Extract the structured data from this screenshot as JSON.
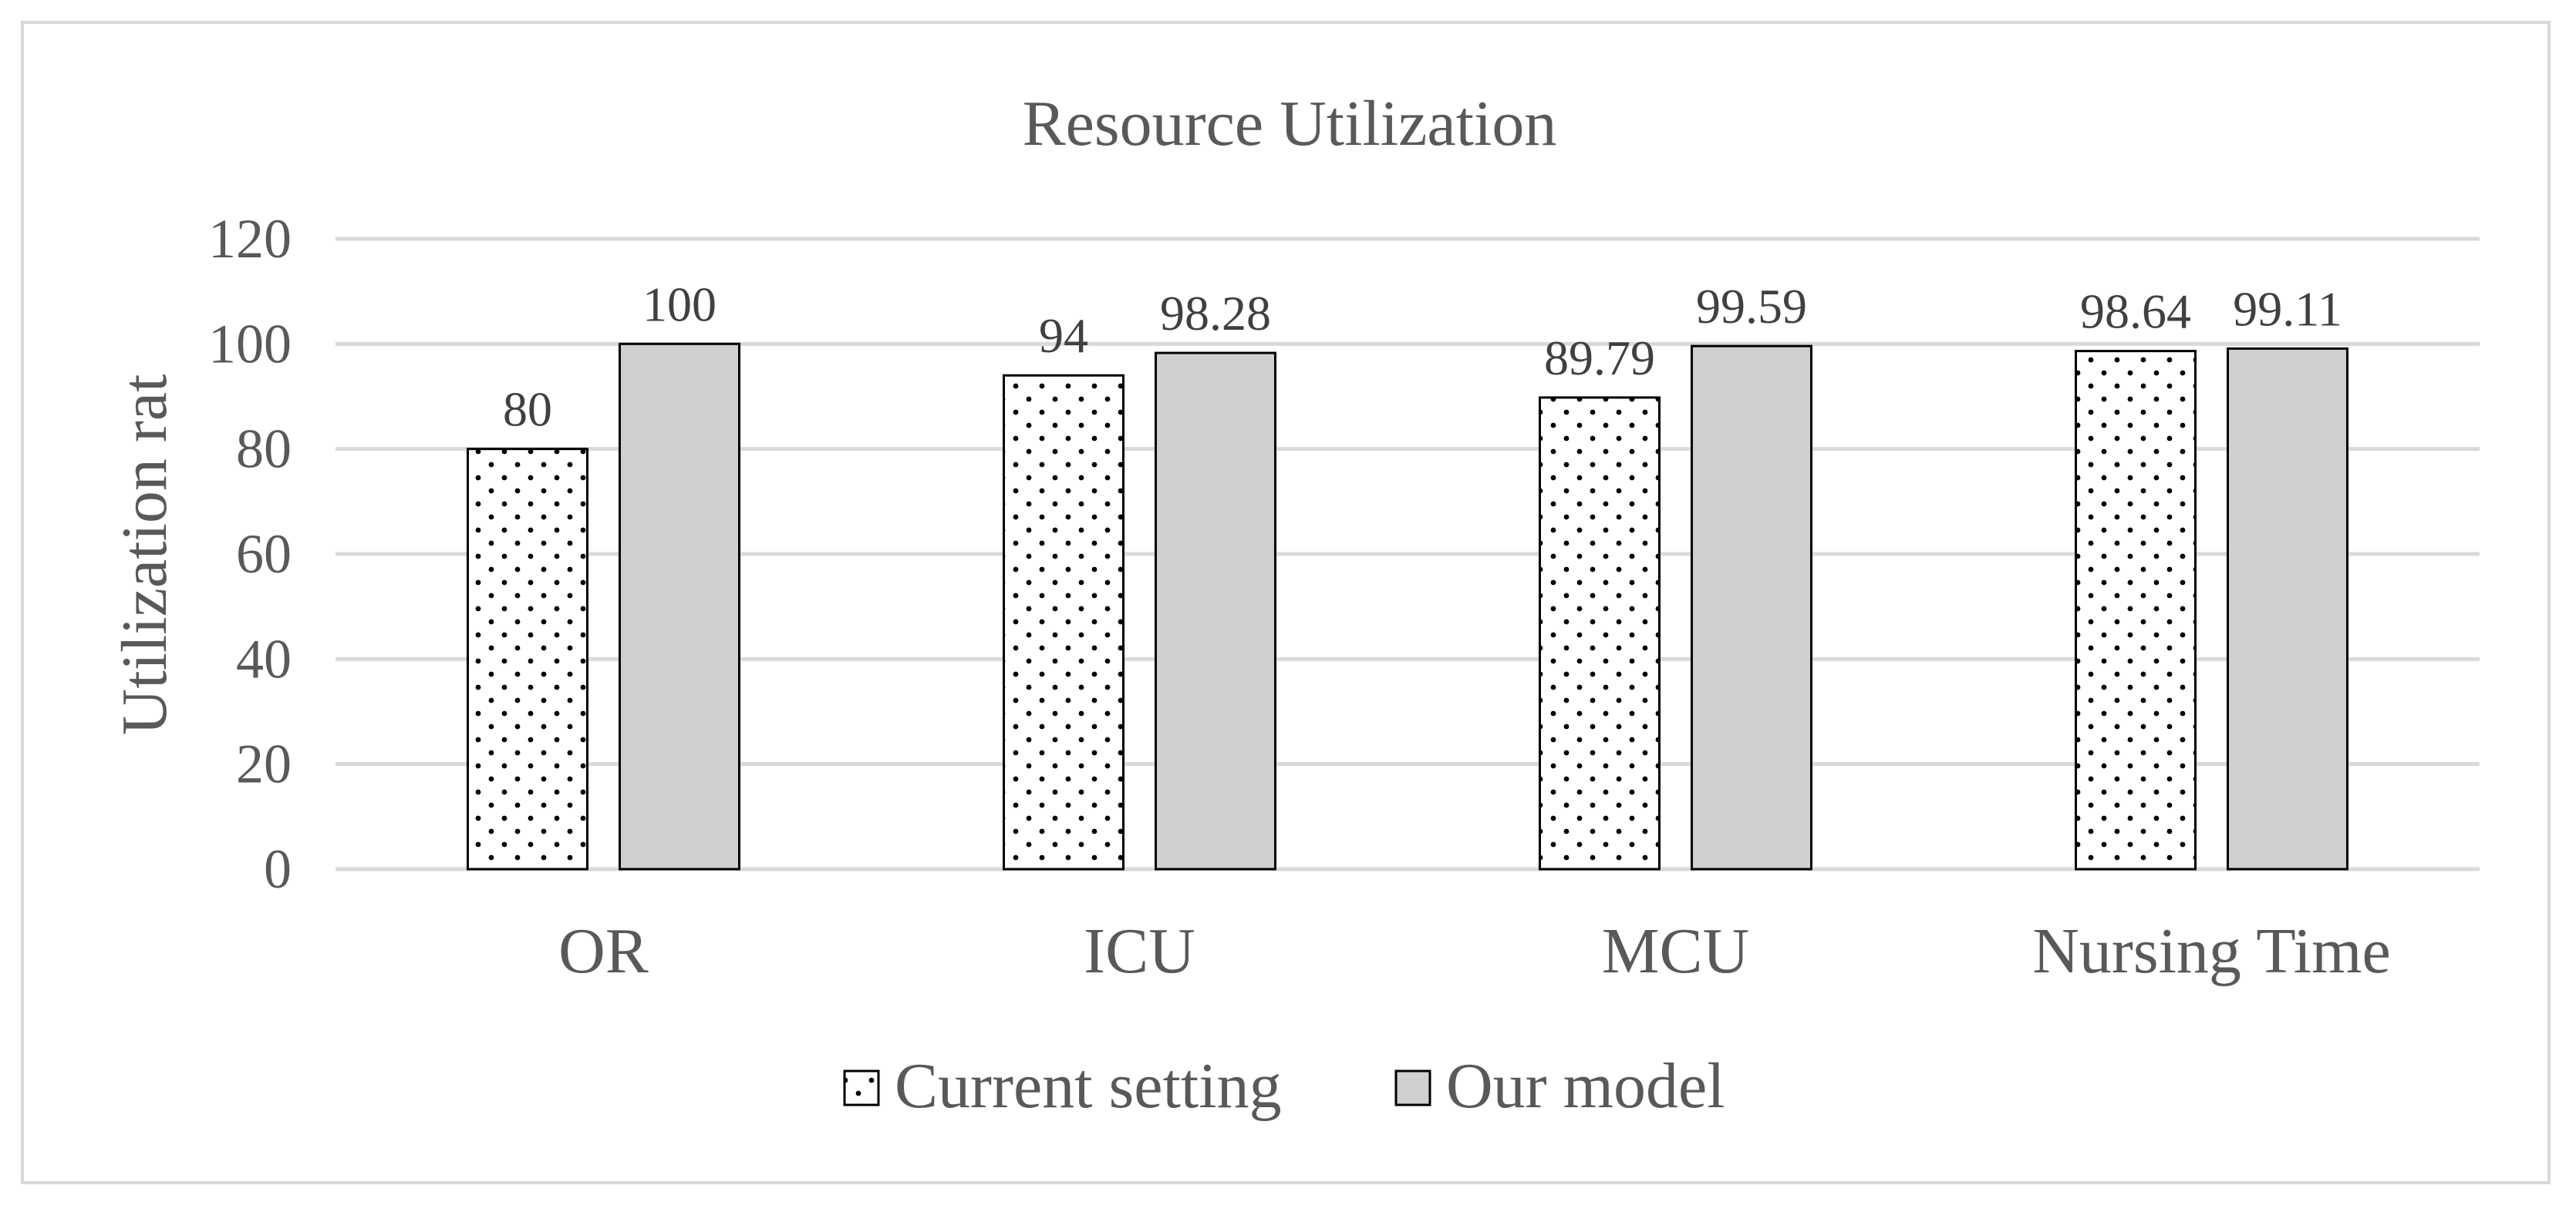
{
  "chart_data": {
    "type": "bar",
    "title": "Resource Utilization",
    "xlabel": "",
    "ylabel": "Utilization rat",
    "ylim": [
      0,
      120
    ],
    "yticks": [
      0,
      20,
      40,
      60,
      80,
      100,
      120
    ],
    "grid": true,
    "legend_position": "bottom",
    "categories": [
      "OR",
      "ICU",
      "MCU",
      "Nursing Time"
    ],
    "series": [
      {
        "name": "Current setting",
        "values": [
          80,
          94,
          89.79,
          98.64
        ],
        "labels": [
          "80",
          "94",
          "89.79",
          "98.64"
        ],
        "fill": "dotted-white"
      },
      {
        "name": "Our model",
        "values": [
          100,
          98.28,
          99.59,
          99.11
        ],
        "labels": [
          "100",
          "98.28",
          "99.59",
          "99.11"
        ],
        "fill": "#d0cece"
      }
    ],
    "colors": {
      "gridline": "#d9d9d9",
      "bar_outline": "#000000",
      "our_model_fill": "#d0cece",
      "text": "#595959"
    }
  }
}
